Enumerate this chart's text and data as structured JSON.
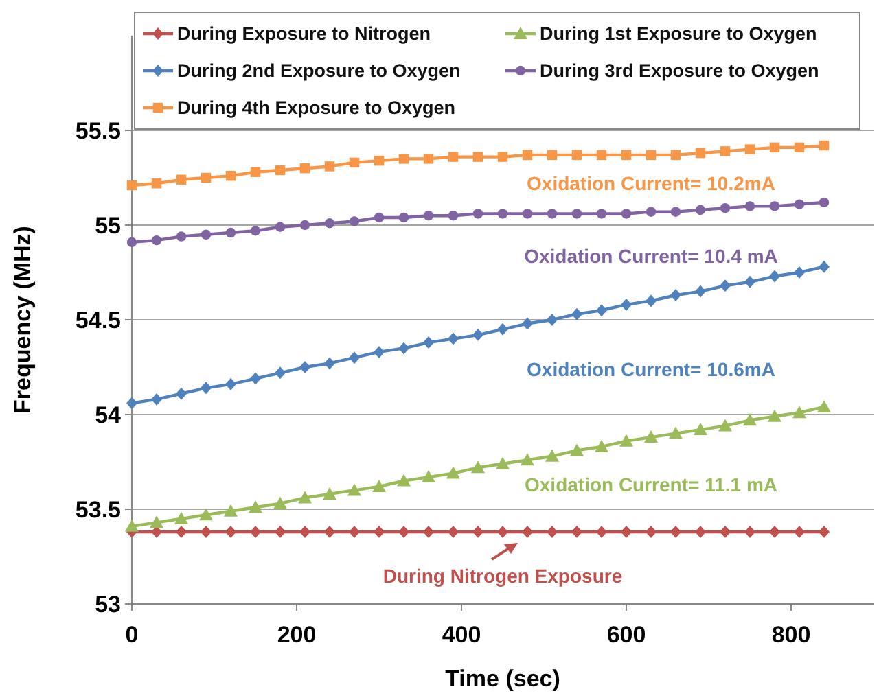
{
  "chart_data": {
    "type": "line",
    "xlabel": "Time (sec)",
    "ylabel": "Frequency (MHz)",
    "x": [
      0,
      30,
      60,
      90,
      120,
      150,
      180,
      210,
      240,
      270,
      300,
      330,
      360,
      390,
      420,
      450,
      480,
      510,
      540,
      570,
      600,
      630,
      660,
      690,
      720,
      750,
      780,
      810,
      840
    ],
    "xlim": [
      0,
      900
    ],
    "xticks": [
      0,
      200,
      400,
      600,
      800
    ],
    "ylim": [
      53,
      56
    ],
    "yticks": [
      53,
      53.5,
      54,
      54.5,
      55,
      55.5
    ],
    "grid": "y",
    "legend": "top",
    "series": [
      {
        "name": "During Exposure to Nitrogen",
        "color": "#c0504d",
        "marker": "diamond",
        "values": [
          53.38,
          53.38,
          53.38,
          53.38,
          53.38,
          53.38,
          53.38,
          53.38,
          53.38,
          53.38,
          53.38,
          53.38,
          53.38,
          53.38,
          53.38,
          53.38,
          53.38,
          53.38,
          53.38,
          53.38,
          53.38,
          53.38,
          53.38,
          53.38,
          53.38,
          53.38,
          53.38,
          53.38,
          53.38
        ]
      },
      {
        "name": "During 1st Exposure to Oxygen",
        "color": "#9bbb59",
        "marker": "triangle",
        "values": [
          53.41,
          53.43,
          53.45,
          53.47,
          53.49,
          53.51,
          53.53,
          53.56,
          53.58,
          53.6,
          53.62,
          53.65,
          53.67,
          53.69,
          53.72,
          53.74,
          53.76,
          53.78,
          53.81,
          53.83,
          53.86,
          53.88,
          53.9,
          53.92,
          53.94,
          53.97,
          53.99,
          54.01,
          54.04
        ]
      },
      {
        "name": "During 2nd Exposure to Oxygen",
        "color": "#4f81bd",
        "marker": "diamond",
        "values": [
          54.06,
          54.08,
          54.11,
          54.14,
          54.16,
          54.19,
          54.22,
          54.25,
          54.27,
          54.3,
          54.33,
          54.35,
          54.38,
          54.4,
          54.42,
          54.45,
          54.48,
          54.5,
          54.53,
          54.55,
          54.58,
          54.6,
          54.63,
          54.65,
          54.68,
          54.7,
          54.73,
          54.75,
          54.78
        ]
      },
      {
        "name": "During 3rd Exposure to Oxygen",
        "color": "#8064a2",
        "marker": "circle",
        "values": [
          54.91,
          54.92,
          54.94,
          54.95,
          54.96,
          54.97,
          54.99,
          55.0,
          55.01,
          55.02,
          55.04,
          55.04,
          55.05,
          55.05,
          55.06,
          55.06,
          55.06,
          55.06,
          55.06,
          55.06,
          55.06,
          55.07,
          55.07,
          55.08,
          55.09,
          55.1,
          55.1,
          55.11,
          55.12
        ]
      },
      {
        "name": "During 4th Exposure to Oxygen",
        "color": "#f79646",
        "marker": "square",
        "values": [
          55.21,
          55.22,
          55.24,
          55.25,
          55.26,
          55.28,
          55.29,
          55.3,
          55.31,
          55.33,
          55.34,
          55.35,
          55.35,
          55.36,
          55.36,
          55.36,
          55.37,
          55.37,
          55.37,
          55.37,
          55.37,
          55.37,
          55.37,
          55.38,
          55.39,
          55.4,
          55.41,
          55.41,
          55.42
        ]
      }
    ],
    "annotations": [
      "Oxidation Current= 10.2mA",
      "Oxidation Current= 10.4 mA",
      "Oxidation Current= 10.6mA",
      "Oxidation Current= 11.1 mA",
      "During Nitrogen Exposure"
    ]
  }
}
